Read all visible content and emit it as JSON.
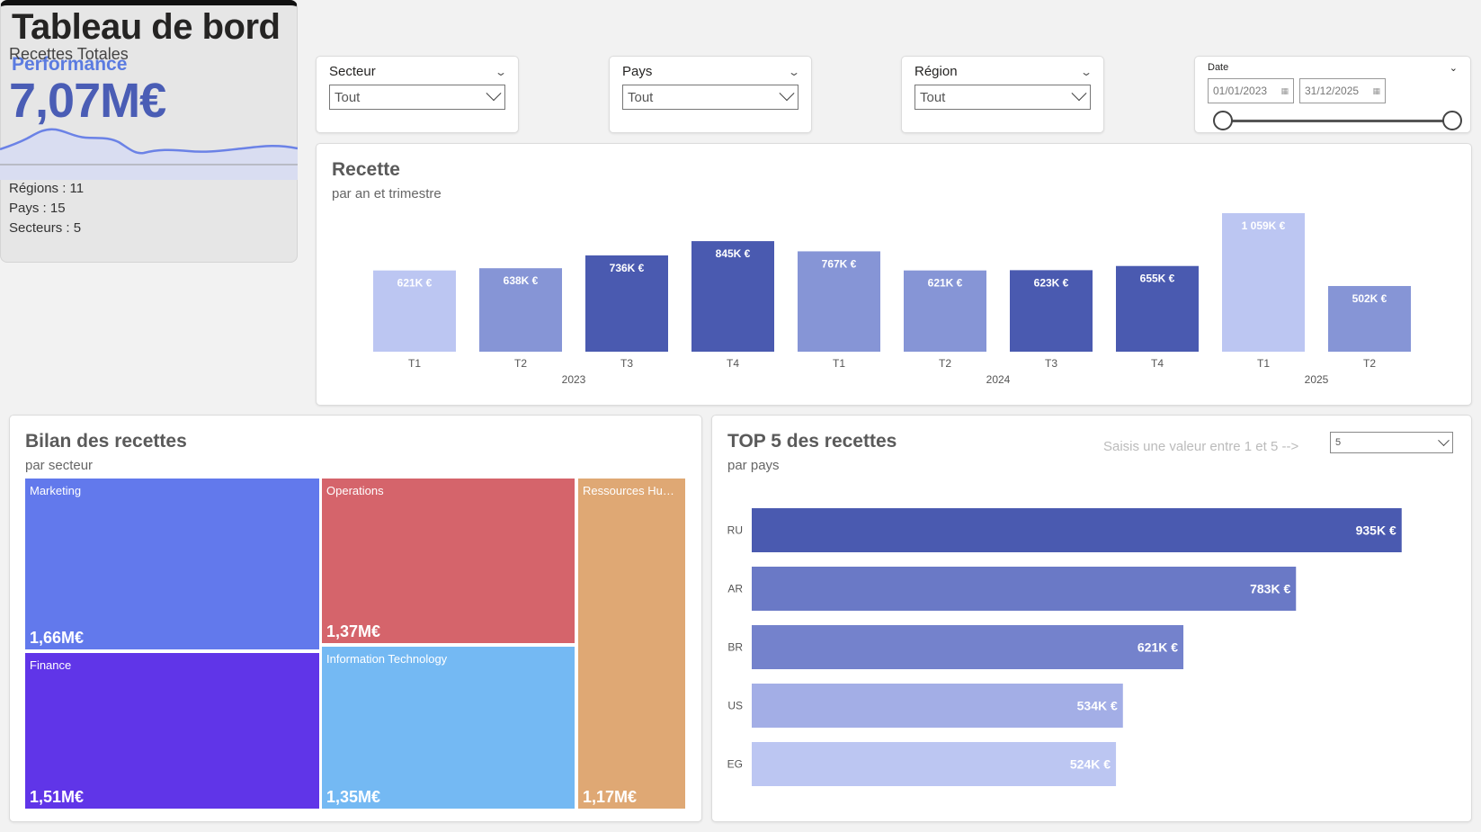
{
  "header": {
    "title": "Tableau de bord",
    "subtitle": "Performance"
  },
  "slicers": [
    {
      "label": "Secteur",
      "value": "Tout"
    },
    {
      "label": "Pays",
      "value": "Tout"
    },
    {
      "label": "Région",
      "value": "Tout"
    }
  ],
  "date_slicer": {
    "label": "Date",
    "start": "01/01/2023",
    "end": "31/12/2025"
  },
  "kpi": {
    "label": "Recettes Totales",
    "value": "7,07M€",
    "regions": "Régions : 11",
    "pays": "Pays : 15",
    "secteurs": "Secteurs : 5",
    "accent": "#4a5db5"
  },
  "recette": {
    "title": "Recette",
    "subtitle": "par an et trimestre"
  },
  "bilan": {
    "title": "Bilan des recettes",
    "subtitle": "par secteur"
  },
  "top5": {
    "title": "TOP 5 des recettes",
    "subtitle": "par pays",
    "hint": "Saisis une valeur entre 1 et 5 -->",
    "select_value": "5"
  },
  "chart_data": [
    {
      "type": "bar",
      "title": "Recette",
      "subtitle": "par an et trimestre",
      "categories": [
        "T1",
        "T2",
        "T3",
        "T4",
        "T1",
        "T2",
        "T3",
        "T4",
        "T1",
        "T2"
      ],
      "years": [
        {
          "label": "2023",
          "count": 4
        },
        {
          "label": "2024",
          "count": 4
        },
        {
          "label": "2025",
          "count": 2
        }
      ],
      "values": [
        621,
        638,
        736,
        845,
        767,
        621,
        623,
        655,
        1059,
        502
      ],
      "labels": [
        "621K €",
        "638K €",
        "736K €",
        "845K €",
        "767K €",
        "621K €",
        "623K €",
        "655K €",
        "1 059K €",
        "502K €"
      ],
      "colors": [
        "#bcc6f2",
        "#8695d6",
        "#4a5ab0",
        "#4a5ab0",
        "#8695d6",
        "#8695d6",
        "#4a5ab0",
        "#4a5ab0",
        "#bcc6f2",
        "#8695d6"
      ],
      "unit": "K €",
      "ylim": [
        0,
        1100
      ]
    },
    {
      "type": "treemap",
      "title": "Bilan des recettes",
      "subtitle": "par secteur",
      "items": [
        {
          "name": "Marketing",
          "value": 1.66,
          "label": "1,66M€",
          "color": "#6279ec"
        },
        {
          "name": "Finance",
          "value": 1.51,
          "label": "1,51M€",
          "color": "#6035e8"
        },
        {
          "name": "Operations",
          "value": 1.37,
          "label": "1,37M€",
          "color": "#d5646b"
        },
        {
          "name": "Information Technology",
          "value": 1.35,
          "label": "1,35M€",
          "color": "#74b9f3"
        },
        {
          "name": "Ressources Humai...",
          "value": 1.17,
          "label": "1,17M€",
          "color": "#dfa874"
        }
      ]
    },
    {
      "type": "bar",
      "orientation": "horizontal",
      "title": "TOP 5 des recettes",
      "subtitle": "par pays",
      "categories": [
        "RU",
        "AR",
        "BR",
        "US",
        "EG"
      ],
      "values": [
        935,
        783,
        621,
        534,
        524
      ],
      "labels": [
        "935K €",
        "783K €",
        "621K €",
        "534K €",
        "524K €"
      ],
      "colors": [
        "#4a5ab0",
        "#6a79c6",
        "#7482cc",
        "#a3aee6",
        "#bcc6f2"
      ],
      "xlim": [
        0,
        1000
      ]
    }
  ]
}
